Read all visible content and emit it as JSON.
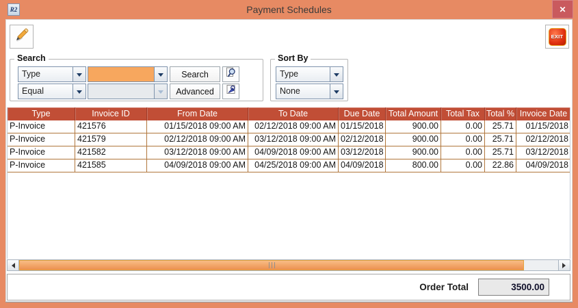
{
  "window": {
    "title": "Payment Schedules",
    "app_icon_text": "R2",
    "close_glyph": "✕"
  },
  "toolbar": {
    "exit_label": "EXIT"
  },
  "search": {
    "legend": "Search",
    "field_selector": {
      "value": "Type"
    },
    "operator_selector": {
      "value": "Equal"
    },
    "search_value": "",
    "search_value_secondary": "",
    "buttons": {
      "search": "Search",
      "advanced": "Advanced"
    }
  },
  "sort_by": {
    "legend": "Sort By",
    "primary": "Type",
    "secondary": "None"
  },
  "invoice_table": {
    "columns": [
      "Type",
      "Invoice ID",
      "From Date",
      "To Date",
      "Due Date",
      "Total Amount",
      "Total Tax",
      "Total %",
      "Invoice Date"
    ],
    "rows": [
      [
        "P-Invoice",
        "421576",
        "01/15/2018 09:00 AM",
        "02/12/2018 09:00 AM",
        "01/15/2018",
        "900.00",
        "0.00",
        "25.71",
        "01/15/2018"
      ],
      [
        "P-Invoice",
        "421579",
        "02/12/2018 09:00 AM",
        "03/12/2018 09:00 AM",
        "02/12/2018",
        "900.00",
        "0.00",
        "25.71",
        "02/12/2018"
      ],
      [
        "P-Invoice",
        "421582",
        "03/12/2018 09:00 AM",
        "04/09/2018 09:00 AM",
        "03/12/2018",
        "900.00",
        "0.00",
        "25.71",
        "03/12/2018"
      ],
      [
        "P-Invoice",
        "421585",
        "04/09/2018 09:00 AM",
        "04/25/2018 09:00 AM",
        "04/09/2018",
        "800.00",
        "0.00",
        "22.86",
        "04/09/2018"
      ]
    ]
  },
  "footer": {
    "label": "Order Total",
    "value": "3500.00"
  },
  "colors": {
    "frame": "#E78A63",
    "table_header": "#C14E36",
    "grid_line": "#B0763B",
    "highlight_field": "#F7A75E",
    "close_button": "#C95A5E",
    "exit_button": "#E03010",
    "scrollbar_thumb": "#F0A066"
  }
}
